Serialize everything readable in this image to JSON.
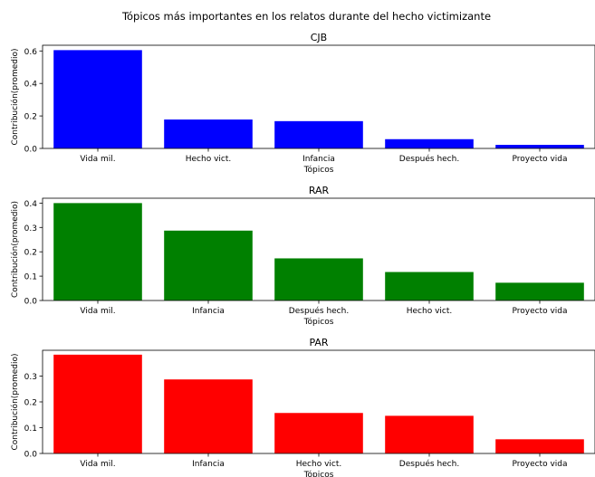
{
  "figure_title": "Tópicos más importantes en los relatos durante del hecho victimizante",
  "chart_data": [
    {
      "type": "bar",
      "title": "CJB",
      "xlabel": "Tópicos",
      "ylabel": "Contribución(promedio)",
      "categories": [
        "Vida mil.",
        "Hecho vict.",
        "Infancia",
        "Después hech.",
        "Proyecto vida"
      ],
      "values": [
        0.605,
        0.178,
        0.168,
        0.057,
        0.022
      ],
      "ylim": [
        0,
        0.635
      ],
      "yticks": [
        0.0,
        0.2,
        0.4,
        0.6
      ],
      "ytick_labels": [
        "0.0",
        "0.2",
        "0.4",
        "0.6"
      ],
      "color": "#0000ff"
    },
    {
      "type": "bar",
      "title": "RAR",
      "xlabel": "Tópicos",
      "ylabel": "Contribución(promedio)",
      "categories": [
        "Vida mil.",
        "Infancia",
        "Después hech.",
        "Hecho vict.",
        "Proyecto vida"
      ],
      "values": [
        0.4,
        0.287,
        0.173,
        0.117,
        0.073
      ],
      "ylim": [
        0,
        0.42
      ],
      "yticks": [
        0.0,
        0.1,
        0.2,
        0.3,
        0.4
      ],
      "ytick_labels": [
        "0.0",
        "0.1",
        "0.2",
        "0.3",
        "0.4"
      ],
      "color": "#008000"
    },
    {
      "type": "bar",
      "title": "PAR",
      "xlabel": "Tópicos",
      "ylabel": "Contribución(promedio)",
      "categories": [
        "Vida mil.",
        "Infancia",
        "Hecho vict.",
        "Después hech.",
        "Proyecto vida"
      ],
      "values": [
        0.383,
        0.287,
        0.157,
        0.146,
        0.055
      ],
      "ylim": [
        0,
        0.4
      ],
      "yticks": [
        0.0,
        0.1,
        0.2,
        0.3
      ],
      "ytick_labels": [
        "0.0",
        "0.1",
        "0.2",
        "0.3"
      ],
      "color": "#ff0000"
    }
  ]
}
